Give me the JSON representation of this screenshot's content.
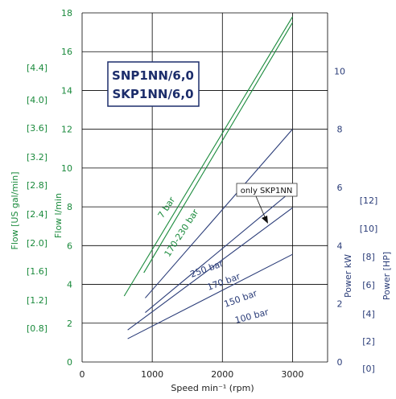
{
  "chart_data": {
    "type": "line",
    "title_lines": [
      "SNP1NN/6,0",
      "SKP1NN/6,0"
    ],
    "xlabel": "Speed min⁻¹ (rpm)",
    "xlim": [
      0,
      3500
    ],
    "x_ticks": [
      "0",
      "1000",
      "2000",
      "3000"
    ],
    "y_left": {
      "label": "Flow  l/min",
      "ylim": [
        0,
        18
      ],
      "ticks": [
        "0",
        "2",
        "4",
        "6",
        "8",
        "10",
        "12",
        "14",
        "16",
        "18"
      ]
    },
    "y_left_outer": {
      "label": "Flow  [US gal/min]",
      "ticks": [
        "[0.8]",
        "[1.2]",
        "[1.6]",
        "[2.0]",
        "[2.4]",
        "[2.8]",
        "[3.2]",
        "[3.6]",
        "[4.0]",
        "[4.4]"
      ]
    },
    "y_right": {
      "label": "Power  kW",
      "ylim": [
        0,
        12
      ],
      "ticks": [
        "0",
        "2",
        "4",
        "6",
        "8",
        "10"
      ]
    },
    "y_right_outer": {
      "label": "Power [HP]",
      "ticks": [
        "[0]",
        "[2]",
        "[4]",
        "[6]",
        "[8]",
        "[10]",
        "[12]"
      ]
    },
    "series": [
      {
        "name": "7 bar",
        "axis": "flow",
        "color": "#1a8a3c",
        "x": [
          600,
          3000
        ],
        "y": [
          3.4,
          17.8
        ]
      },
      {
        "name": "170-230 bar",
        "axis": "flow",
        "color": "#1a8a3c",
        "x": [
          880,
          3000
        ],
        "y": [
          4.6,
          17.5
        ]
      },
      {
        "name": "250 bar",
        "axis": "power",
        "color": "#2a3c78",
        "x": [
          900,
          3000
        ],
        "y": [
          2.2,
          8.0
        ]
      },
      {
        "name": "170 bar",
        "axis": "power",
        "color": "#2a3c78",
        "x": [
          900,
          3000
        ],
        "y": [
          1.7,
          5.9
        ]
      },
      {
        "name": "150 bar",
        "axis": "power",
        "color": "#2a3c78",
        "x": [
          650,
          3000
        ],
        "y": [
          1.1,
          5.3
        ]
      },
      {
        "name": "100 bar",
        "axis": "power",
        "color": "#2a3c78",
        "x": [
          650,
          3000
        ],
        "y": [
          0.8,
          3.7
        ]
      }
    ],
    "annotation": "only SKP1NN",
    "grid": true
  }
}
